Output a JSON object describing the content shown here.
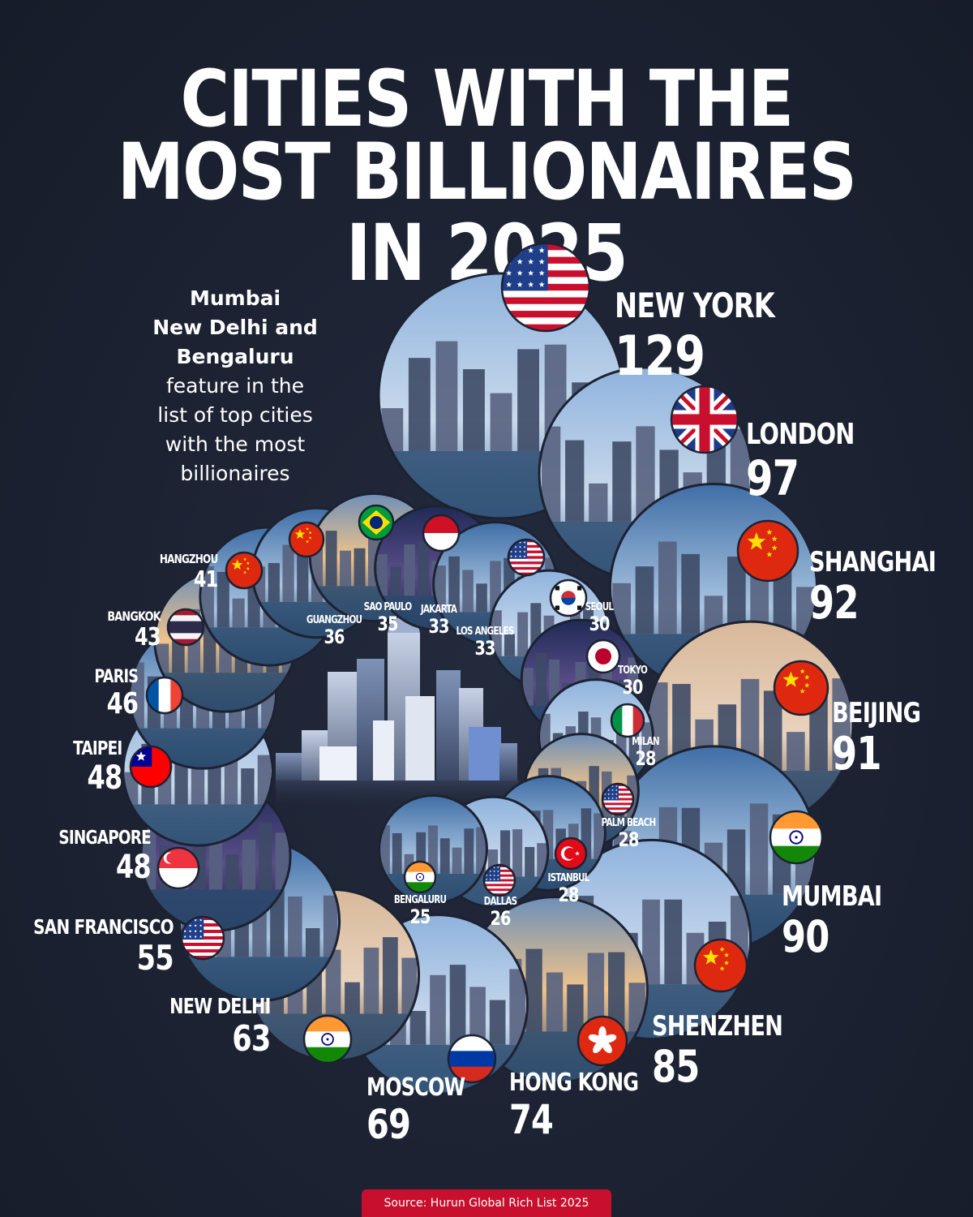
{
  "title_line1": "CITIES WITH THE",
  "title_line2": "MOST BILLIONAIRES IN 2025",
  "note": {
    "bold_lines": [
      "Mumbai",
      "New Delhi and",
      "Bengaluru"
    ],
    "regular_lines": [
      "feature in the",
      "list of top cities",
      "with the most",
      "billionaires"
    ]
  },
  "source": "Source: Hurun Global Rich List 2025",
  "colors": {
    "background": "#1c2232",
    "source_badge": "#c8102e",
    "text": "#ffffff"
  },
  "chart_data": {
    "type": "bubble",
    "title": "CITIES WITH THE MOST BILLIONAIRES IN 2025",
    "unit": "billionaires",
    "categories": [
      "NEW YORK",
      "LONDON",
      "SHANGHAI",
      "BEIJING",
      "MUMBAI",
      "SHENZHEN",
      "HONG KONG",
      "MOSCOW",
      "NEW DELHI",
      "SAN FRANCISCO",
      "SINGAPORE",
      "TAIPEI",
      "PARIS",
      "BANGKOK",
      "HANGZHOU",
      "GUANGZHOU",
      "SAO PAULO",
      "JAKARTA",
      "LOS ANGELES",
      "SEOUL",
      "TOKYO",
      "MILAN",
      "PALM BEACH",
      "ISTANBUL",
      "DALLAS",
      "BENGALURU"
    ],
    "values": [
      129,
      97,
      92,
      91,
      90,
      85,
      74,
      69,
      63,
      55,
      48,
      48,
      46,
      43,
      41,
      36,
      35,
      33,
      33,
      30,
      30,
      28,
      28,
      28,
      26,
      25
    ],
    "countries": [
      "United States",
      "United Kingdom",
      "China",
      "China",
      "India",
      "China",
      "Hong Kong",
      "Russia",
      "India",
      "United States",
      "Singapore",
      "Taiwan",
      "France",
      "Thailand",
      "China",
      "China",
      "Brazil",
      "Indonesia",
      "United States",
      "South Korea",
      "Japan",
      "Italy",
      "United States",
      "Turkey",
      "United States",
      "India"
    ],
    "flag_icons": [
      "flag-us-icon",
      "flag-uk-icon",
      "flag-china-icon",
      "flag-china-icon",
      "flag-india-icon",
      "flag-china-icon",
      "flag-hong-kong-icon",
      "flag-russia-icon",
      "flag-india-icon",
      "flag-us-icon",
      "flag-singapore-icon",
      "flag-taiwan-icon",
      "flag-france-icon",
      "flag-thailand-icon",
      "flag-china-icon",
      "flag-china-icon",
      "flag-brazil-icon",
      "flag-indonesia-icon",
      "flag-us-icon",
      "flag-south-korea-icon",
      "flag-japan-icon",
      "flag-italy-icon",
      "flag-us-icon",
      "flag-turkey-icon",
      "flag-us-icon",
      "flag-india-icon"
    ]
  }
}
